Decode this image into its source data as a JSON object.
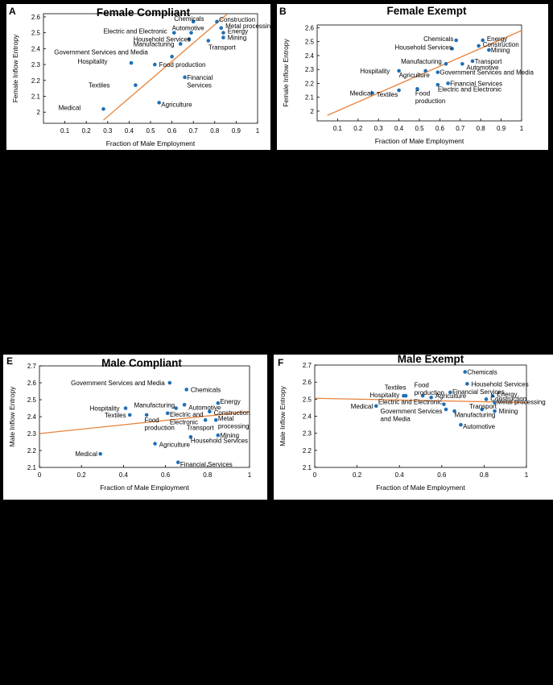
{
  "colors": {
    "point": "#1f6fb5",
    "fit": "#e8823b",
    "axis": "#000000",
    "background": "#ffffff",
    "page": "#000000"
  },
  "chart_data": [
    {
      "panel": "A",
      "title": "Female Compliant",
      "type": "scatter",
      "xlabel": "Fraction of Male Employment",
      "ylabel": "Female Inflow Entropy",
      "xlim": [
        0,
        1
      ],
      "ylim": [
        1.93,
        2.62
      ],
      "xticks": [
        "0.1",
        "0.2",
        "0.3",
        "0.4",
        "0.5",
        "0.6",
        "0.7",
        "0.8",
        "0.9",
        "1"
      ],
      "yticks": [
        "2",
        "2.1",
        "2.2",
        "2.3",
        "2.4",
        "2.5",
        "2.6"
      ],
      "fit": [
        [
          0.28,
          1.95
        ],
        [
          0.86,
          2.62
        ]
      ],
      "points": [
        {
          "label": "Chemicals",
          "x": 0.7,
          "y": 2.57,
          "lx": 0.68,
          "ly": 2.59,
          "anchor": "middle"
        },
        {
          "label": "Construction",
          "x": 0.81,
          "y": 2.57,
          "lx": 0.82,
          "ly": 2.585,
          "anchor": "start"
        },
        {
          "label": "Metal processing",
          "x": 0.83,
          "y": 2.53,
          "lx": 0.85,
          "ly": 2.545,
          "anchor": "start"
        },
        {
          "label": "Automotive",
          "x": 0.69,
          "y": 2.5,
          "lx": 0.6,
          "ly": 2.53,
          "anchor": "start"
        },
        {
          "label": "Energy",
          "x": 0.84,
          "y": 2.5,
          "lx": 0.86,
          "ly": 2.51,
          "anchor": "start"
        },
        {
          "label": "Electric and Electronic",
          "x": 0.61,
          "y": 2.5,
          "lx": 0.28,
          "ly": 2.51,
          "anchor": "start"
        },
        {
          "label": "Mining",
          "x": 0.84,
          "y": 2.47,
          "lx": 0.86,
          "ly": 2.47,
          "anchor": "start"
        },
        {
          "label": "Household Services",
          "x": 0.68,
          "y": 2.46,
          "lx": 0.42,
          "ly": 2.46,
          "anchor": "start"
        },
        {
          "label": "Manufacturing",
          "x": 0.64,
          "y": 2.43,
          "lx": 0.42,
          "ly": 2.43,
          "anchor": "start"
        },
        {
          "label": "Transport",
          "x": 0.77,
          "y": 2.45,
          "lx": 0.77,
          "ly": 2.41,
          "anchor": "start"
        },
        {
          "label": "Government Services and Media",
          "x": 0.6,
          "y": 2.35,
          "lx": 0.05,
          "ly": 2.38,
          "anchor": "start"
        },
        {
          "label": "Hospitality",
          "x": 0.41,
          "y": 2.31,
          "lx": 0.16,
          "ly": 2.32,
          "anchor": "start"
        },
        {
          "label": "Food production",
          "x": 0.52,
          "y": 2.3,
          "lx": 0.54,
          "ly": 2.3,
          "anchor": "start"
        },
        {
          "label": "Textiles",
          "x": 0.43,
          "y": 2.17,
          "lx": 0.21,
          "ly": 2.17,
          "anchor": "start"
        },
        {
          "label": "Financial Services",
          "x": 0.66,
          "y": 2.22,
          "lx": 0.67,
          "ly": 2.22,
          "anchor": "start",
          "lines": [
            "Financial",
            "Services"
          ]
        },
        {
          "label": "Agriculture",
          "x": 0.54,
          "y": 2.06,
          "lx": 0.55,
          "ly": 2.05,
          "anchor": "start"
        },
        {
          "label": "Medical",
          "x": 0.28,
          "y": 2.02,
          "lx": 0.07,
          "ly": 2.03,
          "anchor": "start"
        }
      ]
    },
    {
      "panel": "B",
      "title": "Female Exempt",
      "type": "scatter",
      "xlabel": "Fraction of Male Employment",
      "ylabel": "Female Inflow Entropy",
      "xlim": [
        0,
        1
      ],
      "ylim": [
        1.93,
        2.62
      ],
      "xticks": [
        "0.1",
        "0.2",
        "0.3",
        "0.4",
        "0.5",
        "0.6",
        "0.7",
        "0.8",
        "0.9",
        "1"
      ],
      "yticks": [
        "2",
        "2.1",
        "2.2",
        "2.3",
        "2.4",
        "2.5",
        "2.6"
      ],
      "fit": [
        [
          0.05,
          1.97
        ],
        [
          1.0,
          2.58
        ]
      ],
      "points": [
        {
          "label": "Chemicals",
          "x": 0.68,
          "y": 2.51,
          "lx": 0.52,
          "ly": 2.52,
          "anchor": "start"
        },
        {
          "label": "Energy",
          "x": 0.81,
          "y": 2.51,
          "lx": 0.83,
          "ly": 2.52,
          "anchor": "start"
        },
        {
          "label": "Construction",
          "x": 0.79,
          "y": 2.47,
          "lx": 0.81,
          "ly": 2.48,
          "anchor": "start"
        },
        {
          "label": "Household Services",
          "x": 0.66,
          "y": 2.45,
          "lx": 0.38,
          "ly": 2.46,
          "anchor": "start"
        },
        {
          "label": "Mining",
          "x": 0.84,
          "y": 2.44,
          "lx": 0.85,
          "ly": 2.44,
          "anchor": "start"
        },
        {
          "label": "Transport",
          "x": 0.76,
          "y": 2.36,
          "lx": 0.77,
          "ly": 2.36,
          "anchor": "start"
        },
        {
          "label": "Manufacturing",
          "x": 0.63,
          "y": 2.34,
          "lx": 0.41,
          "ly": 2.36,
          "anchor": "start"
        },
        {
          "label": "Automotive",
          "x": 0.71,
          "y": 2.34,
          "lx": 0.73,
          "ly": 2.315,
          "anchor": "start"
        },
        {
          "label": "Hospitality",
          "x": 0.4,
          "y": 2.29,
          "lx": 0.21,
          "ly": 2.29,
          "anchor": "start"
        },
        {
          "label": "Agriculture",
          "x": 0.53,
          "y": 2.29,
          "lx": 0.4,
          "ly": 2.26,
          "anchor": "start"
        },
        {
          "label": "Government Services and Media",
          "x": 0.59,
          "y": 2.28,
          "lx": 0.6,
          "ly": 2.28,
          "anchor": "start"
        },
        {
          "label": "Financial Services",
          "x": 0.64,
          "y": 2.2,
          "lx": 0.65,
          "ly": 2.2,
          "anchor": "start"
        },
        {
          "label": "Electric and Electronic",
          "x": 0.59,
          "y": 2.19,
          "lx": 0.59,
          "ly": 2.16,
          "anchor": "start"
        },
        {
          "label": "Food production",
          "x": 0.49,
          "y": 2.16,
          "lx": 0.48,
          "ly": 2.13,
          "anchor": "start",
          "lines": [
            "Food",
            "production"
          ]
        },
        {
          "label": "Medical",
          "x": 0.27,
          "y": 2.13,
          "lx": 0.16,
          "ly": 2.13,
          "anchor": "start"
        },
        {
          "label": "Textiles",
          "x": 0.4,
          "y": 2.15,
          "lx": 0.29,
          "ly": 2.12,
          "anchor": "start"
        }
      ]
    },
    {
      "panel": "E",
      "title": "Male Compliant",
      "type": "scatter",
      "xlabel": "Fraction of Male Employment",
      "ylabel": "Male Inflow Entropy",
      "xlim": [
        0,
        1
      ],
      "ylim": [
        2.1,
        2.7
      ],
      "xticks": [
        "0",
        "0.2",
        "0.4",
        "0.6",
        "0.8",
        "1"
      ],
      "yticks": [
        "2.1",
        "2.2",
        "2.3",
        "2.4",
        "2.5",
        "2.6",
        "2.7"
      ],
      "fit": [
        [
          0,
          2.3
        ],
        [
          1,
          2.43
        ]
      ],
      "points": [
        {
          "label": "Government Services and Media",
          "x": 0.62,
          "y": 2.6,
          "lx": 0.15,
          "ly": 2.6,
          "anchor": "start"
        },
        {
          "label": "Chemicals",
          "x": 0.7,
          "y": 2.56,
          "lx": 0.72,
          "ly": 2.56,
          "anchor": "start"
        },
        {
          "label": "Energy",
          "x": 0.85,
          "y": 2.48,
          "lx": 0.86,
          "ly": 2.49,
          "anchor": "start"
        },
        {
          "label": "Manufacturing",
          "x": 0.65,
          "y": 2.45,
          "lx": 0.45,
          "ly": 2.47,
          "anchor": "start"
        },
        {
          "label": "Automotive",
          "x": 0.69,
          "y": 2.47,
          "lx": 0.71,
          "ly": 2.455,
          "anchor": "start"
        },
        {
          "label": "Hospitality",
          "x": 0.41,
          "y": 2.45,
          "lx": 0.24,
          "ly": 2.45,
          "anchor": "start"
        },
        {
          "label": "Construction",
          "x": 0.81,
          "y": 2.43,
          "lx": 0.83,
          "ly": 2.425,
          "anchor": "start"
        },
        {
          "label": "Textiles",
          "x": 0.43,
          "y": 2.41,
          "lx": 0.31,
          "ly": 2.41,
          "anchor": "start"
        },
        {
          "label": "Food production",
          "x": 0.51,
          "y": 2.41,
          "lx": 0.5,
          "ly": 2.38,
          "anchor": "start",
          "lines": [
            "Food",
            "production"
          ]
        },
        {
          "label": "Electric and Electronic",
          "x": 0.61,
          "y": 2.42,
          "lx": 0.62,
          "ly": 2.415,
          "anchor": "start",
          "lines": [
            "Electric and",
            "Electronic"
          ]
        },
        {
          "label": "Metal processing",
          "x": 0.84,
          "y": 2.38,
          "lx": 0.85,
          "ly": 2.39,
          "anchor": "start",
          "lines": [
            "Metal",
            "processing"
          ]
        },
        {
          "label": "Transport",
          "x": 0.79,
          "y": 2.38,
          "lx": 0.7,
          "ly": 2.335,
          "anchor": "start"
        },
        {
          "label": "Mining",
          "x": 0.85,
          "y": 2.29,
          "lx": 0.86,
          "ly": 2.29,
          "anchor": "start"
        },
        {
          "label": "Household Services",
          "x": 0.72,
          "y": 2.28,
          "lx": 0.72,
          "ly": 2.26,
          "anchor": "start"
        },
        {
          "label": "Agriculture",
          "x": 0.55,
          "y": 2.24,
          "lx": 0.57,
          "ly": 2.235,
          "anchor": "start"
        },
        {
          "label": "Medical",
          "x": 0.29,
          "y": 2.18,
          "lx": 0.17,
          "ly": 2.18,
          "anchor": "start"
        },
        {
          "label": "Financial Services",
          "x": 0.66,
          "y": 2.13,
          "lx": 0.67,
          "ly": 2.12,
          "anchor": "start"
        }
      ]
    },
    {
      "panel": "F",
      "title": "Male Exempt",
      "type": "scatter",
      "xlabel": "Fraction of Male Employment",
      "ylabel": "Male Inflow Entropy",
      "xlim": [
        0,
        1
      ],
      "ylim": [
        2.1,
        2.7
      ],
      "xticks": [
        "0",
        "0.2",
        "0.4",
        "0.6",
        "0.8",
        "1"
      ],
      "yticks": [
        "2.1",
        "2.2",
        "2.3",
        "2.4",
        "2.5",
        "2.6",
        "2.7"
      ],
      "fit": [
        [
          0,
          2.505
        ],
        [
          1,
          2.48
        ]
      ],
      "points": [
        {
          "label": "Chemicals",
          "x": 0.71,
          "y": 2.66,
          "lx": 0.72,
          "ly": 2.66,
          "anchor": "start"
        },
        {
          "label": "Household Services",
          "x": 0.72,
          "y": 2.59,
          "lx": 0.74,
          "ly": 2.59,
          "anchor": "start"
        },
        {
          "label": "Textiles",
          "x": 0.43,
          "y": 2.52,
          "lx": 0.33,
          "ly": 2.57,
          "anchor": "start"
        },
        {
          "label": "Food production",
          "x": 0.51,
          "y": 2.52,
          "lx": 0.47,
          "ly": 2.585,
          "anchor": "start",
          "lines": [
            "Food",
            "production"
          ]
        },
        {
          "label": "Financial Services",
          "x": 0.64,
          "y": 2.54,
          "lx": 0.65,
          "ly": 2.545,
          "anchor": "start"
        },
        {
          "label": "Hospitality",
          "x": 0.42,
          "y": 2.52,
          "lx": 0.26,
          "ly": 2.525,
          "anchor": "start"
        },
        {
          "label": "Agriculture",
          "x": 0.55,
          "y": 2.51,
          "lx": 0.57,
          "ly": 2.52,
          "anchor": "start"
        },
        {
          "label": "Energy",
          "x": 0.84,
          "y": 2.52,
          "lx": 0.86,
          "ly": 2.53,
          "anchor": "start"
        },
        {
          "label": "Construction",
          "x": 0.81,
          "y": 2.5,
          "lx": 0.83,
          "ly": 2.505,
          "anchor": "start"
        },
        {
          "label": "Metal processing",
          "x": 0.85,
          "y": 2.48,
          "lx": 0.86,
          "ly": 2.485,
          "anchor": "start"
        },
        {
          "label": "Electric and Electronic",
          "x": 0.61,
          "y": 2.47,
          "lx": 0.3,
          "ly": 2.485,
          "anchor": "start"
        },
        {
          "label": "Medical",
          "x": 0.29,
          "y": 2.46,
          "lx": 0.17,
          "ly": 2.46,
          "anchor": "start"
        },
        {
          "label": "Government Services and Media",
          "x": 0.62,
          "y": 2.44,
          "lx": 0.31,
          "ly": 2.43,
          "anchor": "start",
          "lines": [
            "Government Services",
            "and Media"
          ]
        },
        {
          "label": "Transport",
          "x": 0.79,
          "y": 2.44,
          "lx": 0.73,
          "ly": 2.46,
          "anchor": "start"
        },
        {
          "label": "Mining",
          "x": 0.85,
          "y": 2.43,
          "lx": 0.87,
          "ly": 2.43,
          "anchor": "start"
        },
        {
          "label": "Manufacturing",
          "x": 0.66,
          "y": 2.43,
          "lx": 0.66,
          "ly": 2.41,
          "anchor": "start"
        },
        {
          "label": "Automotive",
          "x": 0.69,
          "y": 2.35,
          "lx": 0.7,
          "ly": 2.34,
          "anchor": "start"
        }
      ]
    }
  ]
}
